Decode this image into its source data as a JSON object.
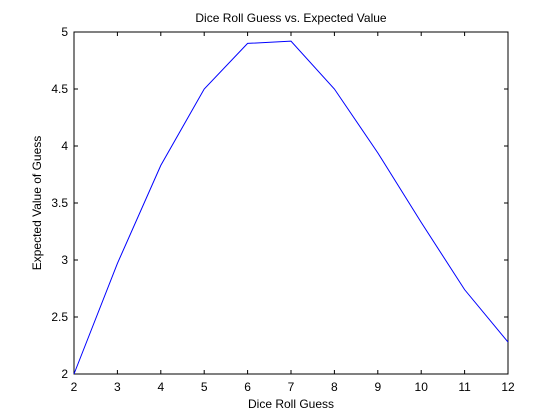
{
  "chart_data": {
    "type": "line",
    "title": "Dice Roll Guess vs. Expected Value",
    "xlabel": "Dice Roll Guess",
    "ylabel": "Expected Value of Guess",
    "xlim": [
      2,
      12
    ],
    "ylim": [
      2,
      5
    ],
    "xticks": [
      2,
      3,
      4,
      5,
      6,
      7,
      8,
      9,
      10,
      11,
      12
    ],
    "yticks": [
      2,
      2.5,
      3,
      3.5,
      4,
      4.5,
      5
    ],
    "ytick_labels": [
      "2",
      "2.5",
      "3",
      "3.5",
      "4",
      "4.5",
      "5"
    ],
    "grid": false,
    "legend": "none",
    "series": [
      {
        "color": "#0000ff",
        "x": [
          2,
          3,
          4,
          5,
          6,
          7,
          8,
          9,
          10,
          11,
          12
        ],
        "y": [
          2.0,
          2.97,
          3.83,
          4.5,
          4.9,
          4.92,
          4.5,
          3.94,
          3.33,
          2.74,
          2.28
        ]
      }
    ]
  }
}
